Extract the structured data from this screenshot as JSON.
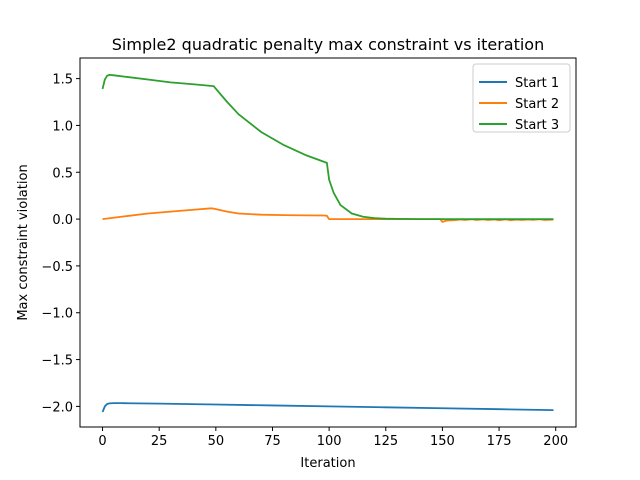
{
  "chart_data": {
    "type": "line",
    "title": "Simple2 quadratic penalty max constraint vs iteration",
    "xlabel": "Iteration",
    "ylabel": "Max constraint violation",
    "xlim": [
      -9.95,
      208.95
    ],
    "ylim": [
      -2.22,
      1.72
    ],
    "xticks": [
      0,
      25,
      50,
      75,
      100,
      125,
      150,
      175,
      200
    ],
    "yticks": [
      -2.0,
      -1.5,
      -1.0,
      -0.5,
      0.0,
      0.5,
      1.0,
      1.5
    ],
    "ytick_labels": [
      "−2.0",
      "−1.5",
      "−1.0",
      "−0.5",
      "0.0",
      "0.5",
      "1.0",
      "1.5"
    ],
    "grid": false,
    "legend_position": "top-right",
    "series": [
      {
        "name": "Start 1",
        "color": "#1f77b4",
        "x": [
          0,
          1,
          2,
          3,
          5,
          8,
          10,
          25,
          50,
          75,
          100,
          125,
          150,
          175,
          199
        ],
        "y": [
          -2.06,
          -2.0,
          -1.975,
          -1.968,
          -1.965,
          -1.965,
          -1.966,
          -1.97,
          -1.98,
          -1.99,
          -2.0,
          -2.01,
          -2.02,
          -2.03,
          -2.04
        ]
      },
      {
        "name": "Start 2",
        "color": "#ff7f0e",
        "x": [
          0,
          10,
          20,
          30,
          40,
          48,
          49,
          55,
          60,
          70,
          80,
          90,
          98,
          99,
          100,
          110,
          120,
          130,
          140,
          149,
          150,
          152,
          155,
          158,
          160,
          163,
          165,
          168,
          170,
          173,
          175,
          178,
          180,
          183,
          185,
          188,
          190,
          193,
          195,
          199
        ],
        "y": [
          0.0,
          0.03,
          0.06,
          0.08,
          0.1,
          0.115,
          0.112,
          0.08,
          0.06,
          0.047,
          0.042,
          0.04,
          0.038,
          0.035,
          0.0,
          0.0,
          0.0,
          0.0,
          0.0,
          0.0,
          -0.03,
          -0.015,
          -0.012,
          -0.004,
          -0.01,
          -0.002,
          -0.009,
          -0.003,
          -0.01,
          -0.004,
          -0.012,
          -0.003,
          -0.012,
          -0.005,
          -0.01,
          -0.004,
          -0.008,
          -0.002,
          -0.01,
          -0.005
        ]
      },
      {
        "name": "Start 3",
        "color": "#2ca02c",
        "x": [
          0,
          1,
          2,
          3,
          5,
          10,
          20,
          30,
          40,
          49,
          55,
          60,
          70,
          80,
          90,
          99,
          100,
          102,
          105,
          110,
          115,
          120,
          125,
          130,
          140,
          150,
          160,
          170,
          180,
          190,
          199
        ],
        "y": [
          1.39,
          1.49,
          1.53,
          1.54,
          1.535,
          1.52,
          1.49,
          1.46,
          1.44,
          1.42,
          1.25,
          1.12,
          0.93,
          0.79,
          0.68,
          0.6,
          0.42,
          0.28,
          0.15,
          0.06,
          0.025,
          0.01,
          0.004,
          0.002,
          0.0,
          0.0,
          0.0,
          0.0,
          0.0,
          0.0,
          0.0
        ]
      }
    ]
  }
}
